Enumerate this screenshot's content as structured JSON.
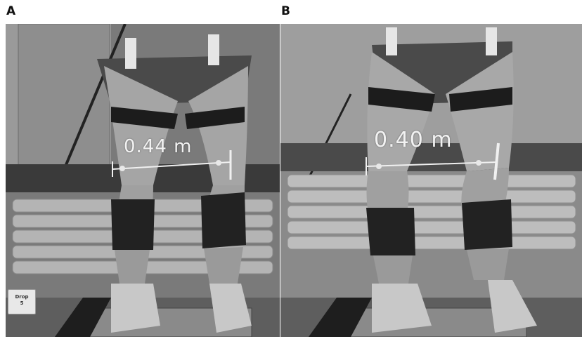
{
  "panels": [
    {
      "letter": "A",
      "measurement": "0.44 m",
      "tag_line1": "Drop",
      "tag_line2": "5"
    },
    {
      "letter": "B",
      "measurement": "0.40 m"
    }
  ],
  "colors": {
    "photo_bg": "#6f6f6f",
    "overlay_line": "#f0f0f0",
    "letter": "#111111"
  }
}
